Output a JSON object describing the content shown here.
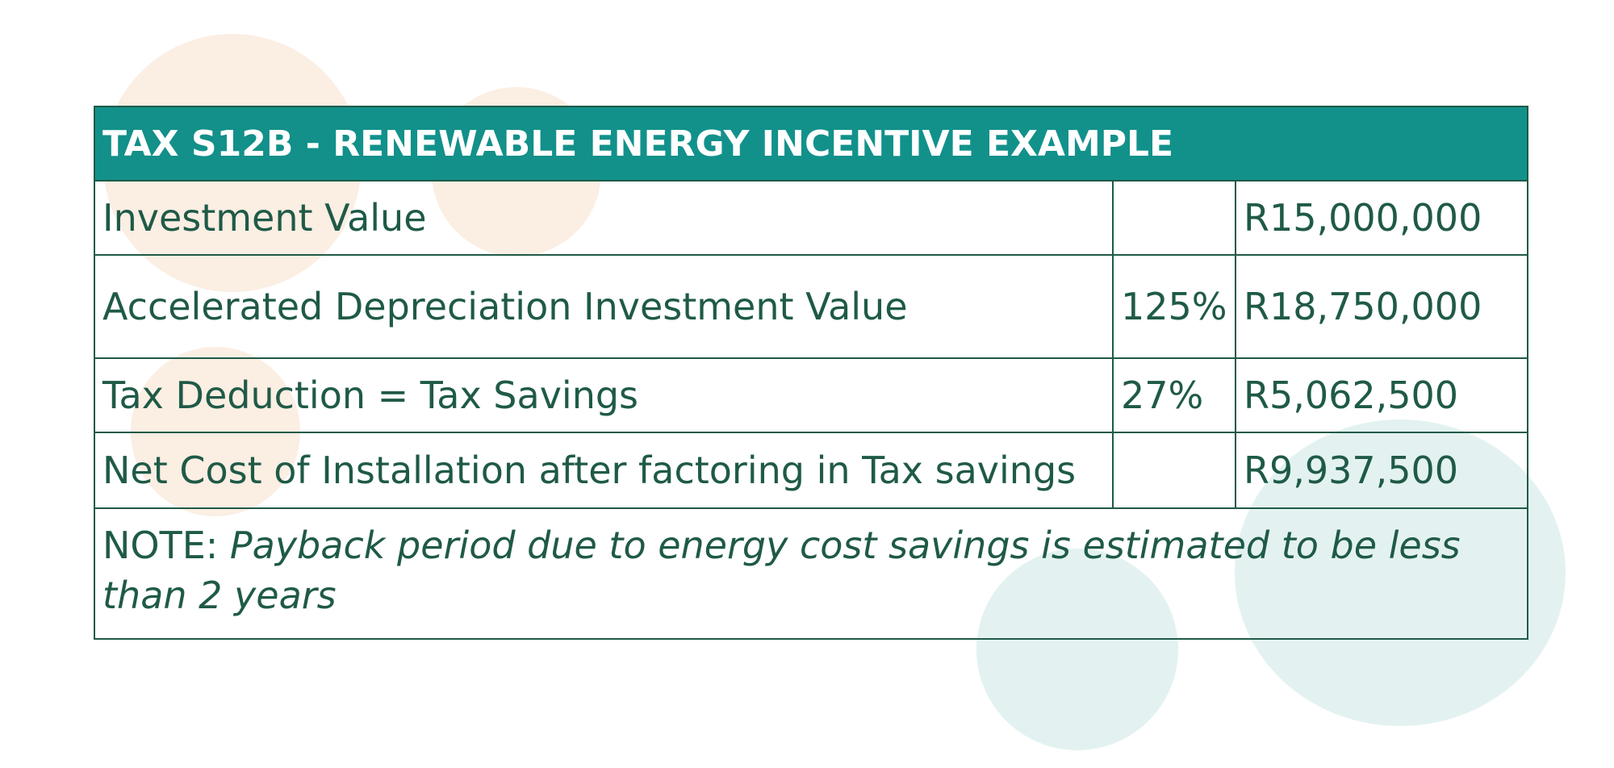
{
  "colors": {
    "header_bg": "#008982",
    "text": "#1f5a47",
    "border": "#1f5a47",
    "peach_blob": "#fbeee3",
    "mint_blob": "#e3f2f1"
  },
  "table": {
    "title": "TAX S12B - RENEWABLE ENERGY INCENTIVE EXAMPLE",
    "rows": [
      {
        "label": "Investment Value",
        "rate": "",
        "amount": "R15,000,000"
      },
      {
        "label": "Accelerated Depreciation Investment Value",
        "rate": "125%",
        "amount": "R18,750,000"
      },
      {
        "label": "Tax Deduction = Tax Savings",
        "rate": "27%",
        "amount": "R5,062,500"
      },
      {
        "label": "Net Cost of Installation after factoring in Tax savings",
        "rate": "",
        "amount": "R9,937,500"
      }
    ],
    "note": {
      "prefix": "NOTE: ",
      "text": "Payback period due to energy cost savings is estimated to be less than 2 years"
    }
  }
}
